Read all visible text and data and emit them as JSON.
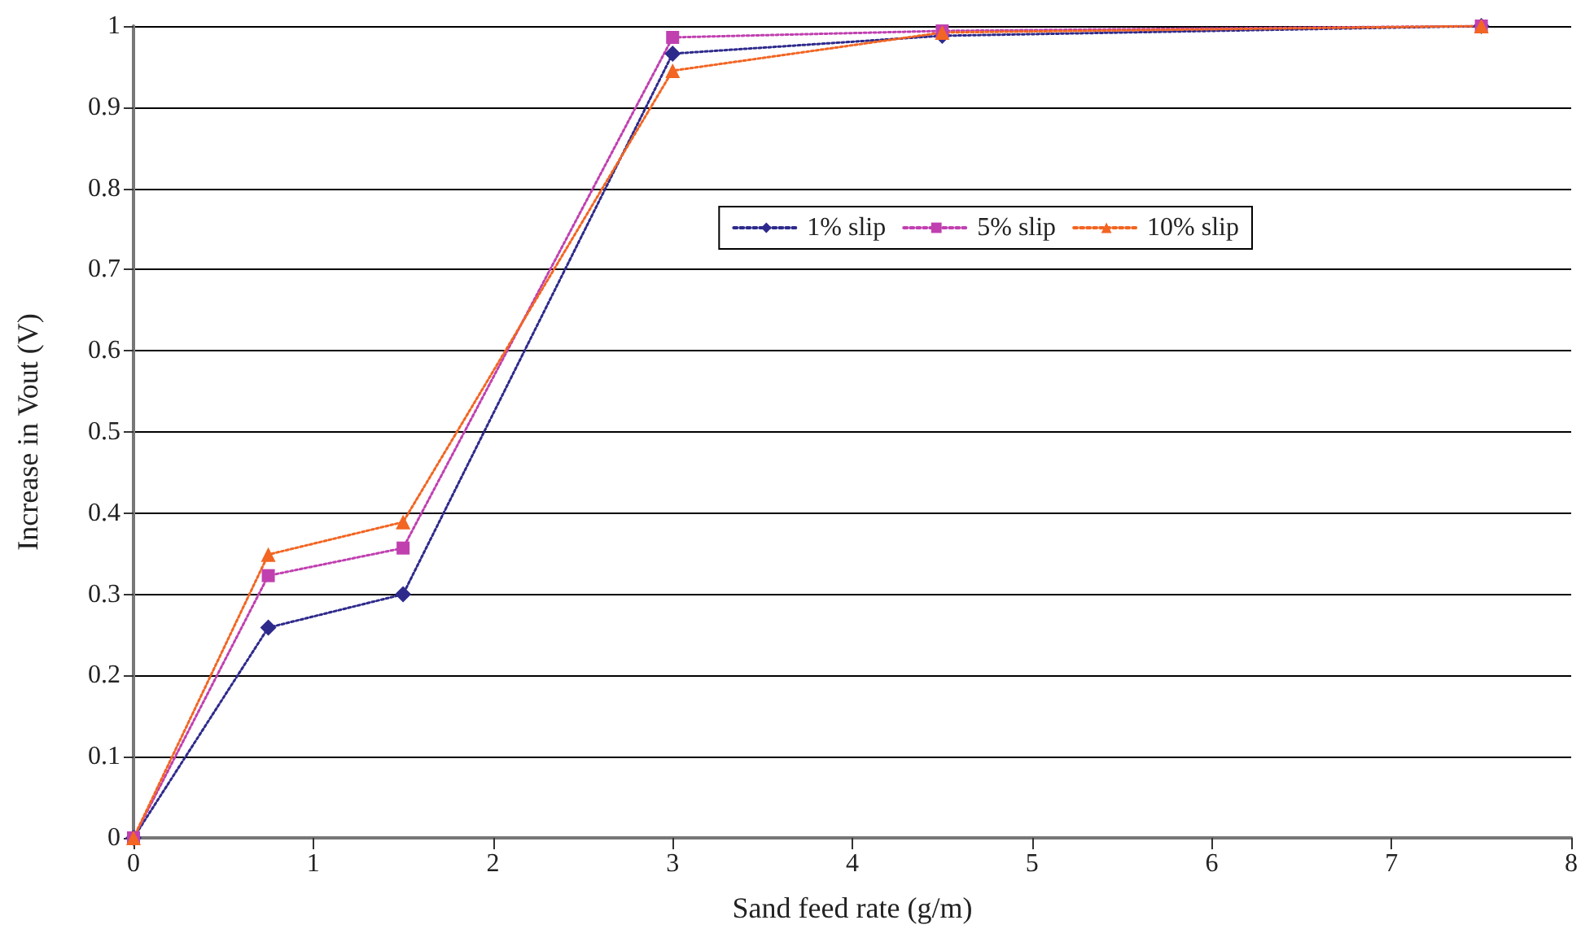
{
  "chart_data": {
    "type": "line",
    "xlabel": "Sand feed rate (g/m)",
    "ylabel": "Increase in Vout (V)",
    "x": [
      0,
      0.75,
      1.5,
      3,
      4.5,
      7.5
    ],
    "series": [
      {
        "name": "1% slip",
        "color": "#2e2a8c",
        "marker": "diamond",
        "values": [
          0,
          0.259,
          0.3,
          0.966,
          0.988,
          1.0
        ]
      },
      {
        "name": "5% slip",
        "color": "#c040b0",
        "marker": "square",
        "values": [
          0,
          0.323,
          0.357,
          0.986,
          0.994,
          1.0
        ]
      },
      {
        "name": "10% slip",
        "color": "#f26522",
        "marker": "triangle",
        "values": [
          0,
          0.349,
          0.389,
          0.945,
          0.992,
          1.0
        ]
      }
    ],
    "xlim": [
      0,
      8
    ],
    "xticks": [
      0,
      1,
      2,
      3,
      4,
      5,
      6,
      7,
      8
    ],
    "ylim": [
      0,
      1
    ],
    "yticks": [
      0,
      0.1,
      0.2,
      0.3,
      0.4,
      0.5,
      0.6,
      0.7,
      0.8,
      0.9,
      1
    ],
    "grid": "y",
    "legend": "top right",
    "line_style": "dotted"
  }
}
